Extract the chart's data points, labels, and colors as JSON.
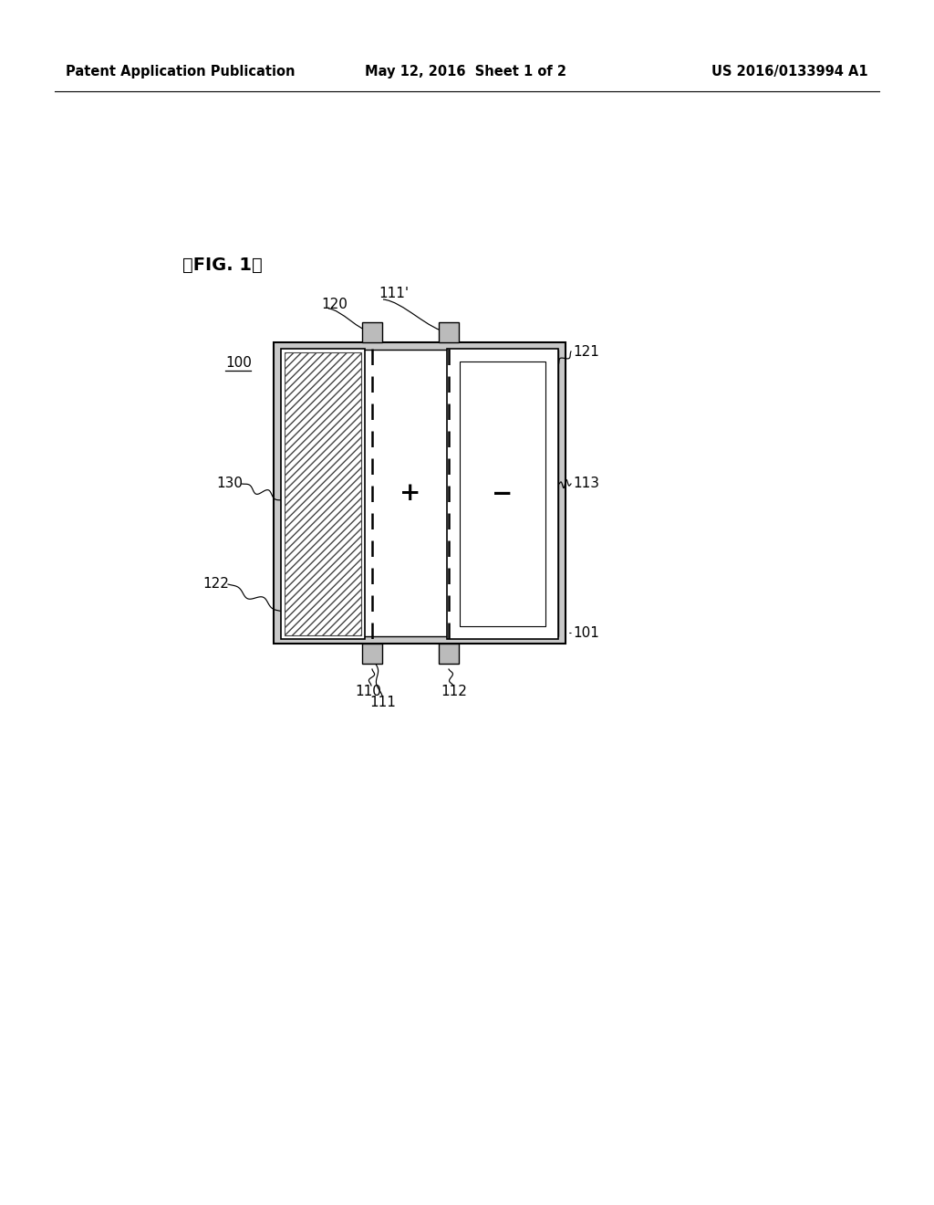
{
  "bg_color": "#ffffff",
  "header_left": "Patent Application Publication",
  "header_mid": "May 12, 2016  Sheet 1 of 2",
  "header_right": "US 2016/0133994 A1",
  "fig_label": "【FIG. 1】",
  "label_100": "100",
  "label_101": "101",
  "label_110": "110",
  "label_111": "111",
  "label_111p": "111'",
  "label_112": "112",
  "label_113": "113",
  "label_120": "120",
  "label_121": "121",
  "label_122": "122",
  "label_130": "130",
  "line_color": "#000000"
}
